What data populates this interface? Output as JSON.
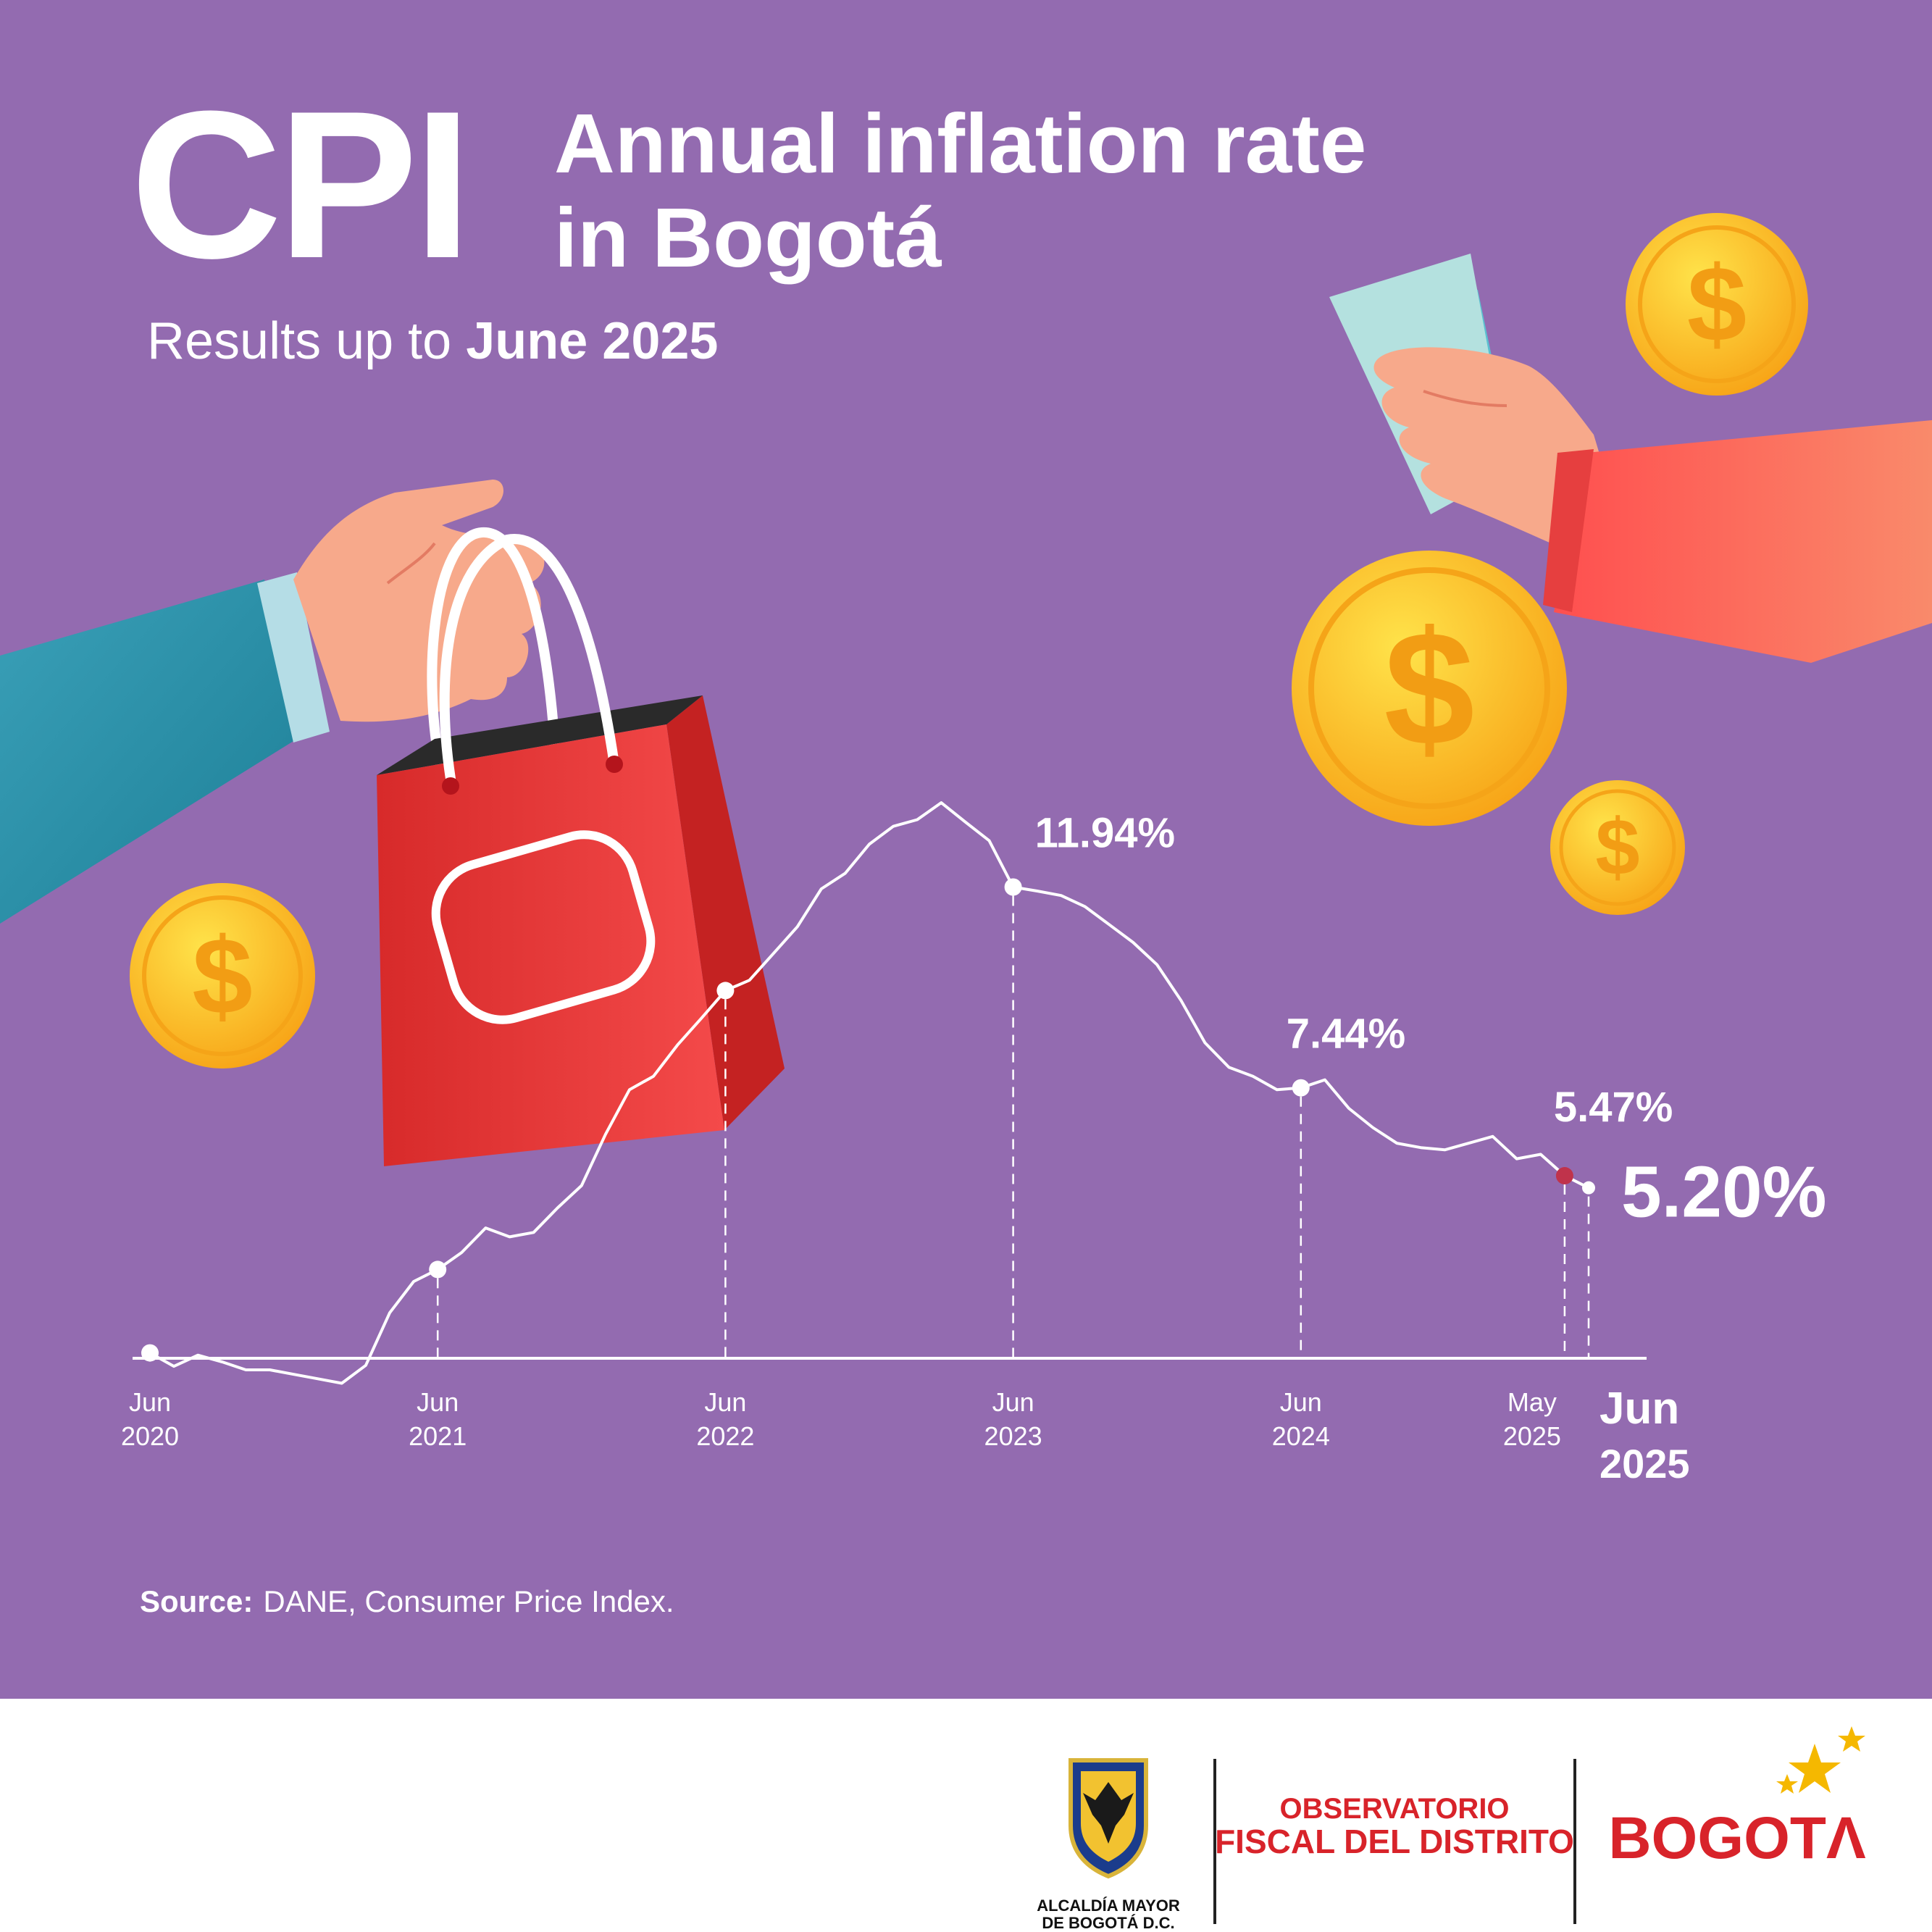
{
  "header": {
    "cpi": "CPI",
    "title_line1": "Annual inflation rate",
    "title_line2": "in Bogotá",
    "subtitle_prefix": "Results up to",
    "subtitle_date": "June 2025"
  },
  "source": {
    "label": "Source:",
    "text": "DANE, Consumer Price Index."
  },
  "colors": {
    "background": "#936bb0",
    "line": "#ffffff",
    "highlight_point": "#c0334b",
    "brand_red": "#d8232a"
  },
  "icons": [
    "hand-holding-shopping-bag-icon",
    "hand-holding-cash-icon",
    "dollar-coin-icon"
  ],
  "chart_data": {
    "type": "line",
    "title": "Annual inflation rate in Bogotá",
    "xlabel": "",
    "ylabel": "",
    "grid": false,
    "legend": "none",
    "ylim": [
      0,
      14
    ],
    "x": [
      "2020-06",
      "2020-07",
      "2020-08",
      "2020-09",
      "2020-10",
      "2020-11",
      "2020-12",
      "2021-01",
      "2021-02",
      "2021-03",
      "2021-04",
      "2021-05",
      "2021-06",
      "2021-07",
      "2021-08",
      "2021-09",
      "2021-10",
      "2021-11",
      "2021-12",
      "2022-01",
      "2022-02",
      "2022-03",
      "2022-04",
      "2022-05",
      "2022-06",
      "2022-07",
      "2022-08",
      "2022-09",
      "2022-10",
      "2022-11",
      "2022-12",
      "2023-01",
      "2023-02",
      "2023-03",
      "2023-04",
      "2023-05",
      "2023-06",
      "2023-07",
      "2023-08",
      "2023-09",
      "2023-10",
      "2023-11",
      "2023-12",
      "2024-01",
      "2024-02",
      "2024-03",
      "2024-04",
      "2024-05",
      "2024-06",
      "2024-07",
      "2024-08",
      "2024-09",
      "2024-10",
      "2024-11",
      "2024-12",
      "2025-01",
      "2025-02",
      "2025-03",
      "2025-04",
      "2025-05",
      "2025-06"
    ],
    "series": [
      {
        "values": [
          1.5,
          1.2,
          1.45,
          1.3,
          1.12,
          1.12,
          1.02,
          0.92,
          0.82,
          1.22,
          2.4,
          3.1,
          3.37,
          3.75,
          4.3,
          4.1,
          4.2,
          4.75,
          5.25,
          6.4,
          7.4,
          7.7,
          8.4,
          9.0,
          9.62,
          9.85,
          10.45,
          11.05,
          11.9,
          12.25,
          12.9,
          13.3,
          13.45,
          13.83,
          13.4,
          12.98,
          11.94,
          11.85,
          11.75,
          11.5,
          11.1,
          10.7,
          10.2,
          9.4,
          8.45,
          7.9,
          7.7,
          7.4,
          7.44,
          7.62,
          6.98,
          6.55,
          6.2,
          6.1,
          6.05,
          6.2,
          6.35,
          5.85,
          5.95,
          5.47,
          5.2
        ]
      }
    ],
    "highlighted_points": [
      {
        "x": "2020-06",
        "y": 1.5
      },
      {
        "x": "2021-06",
        "y": 3.37
      },
      {
        "x": "2022-06",
        "y": 9.62
      },
      {
        "x": "2023-06",
        "y": 11.94,
        "label": "11.94%"
      },
      {
        "x": "2024-06",
        "y": 7.44,
        "label": "7.44%"
      },
      {
        "x": "2025-05",
        "y": 5.47,
        "label": "5.47%"
      },
      {
        "x": "2025-06",
        "y": 5.2,
        "label": "5.20%"
      }
    ],
    "tick_labels": [
      {
        "x": "2020-06",
        "line1": "Jun",
        "line2": "2020"
      },
      {
        "x": "2021-06",
        "line1": "Jun",
        "line2": "2021"
      },
      {
        "x": "2022-06",
        "line1": "Jun",
        "line2": "2022"
      },
      {
        "x": "2023-06",
        "line1": "Jun",
        "line2": "2023"
      },
      {
        "x": "2024-06",
        "line1": "Jun",
        "line2": "2024"
      },
      {
        "x": "2025-05",
        "line1": "May",
        "line2": "2025"
      },
      {
        "x": "2025-06",
        "line1": "Jun",
        "line2": "2025",
        "emphasis": true
      }
    ]
  },
  "footer": {
    "logo1_line1": "ALCALDÍA MAYOR",
    "logo1_line2": "DE BOGOTÁ D.C.",
    "logo2_line1": "OBSERVATORIO",
    "logo2_line2": "FISCAL DEL DISTRITO",
    "logo3": "BOGOTΛ"
  }
}
